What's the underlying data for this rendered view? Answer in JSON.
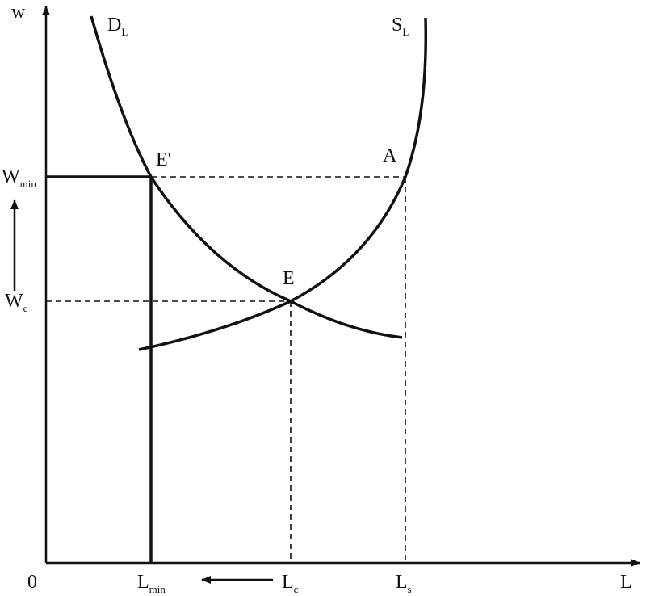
{
  "axes": {
    "y_label": "w",
    "x_label": "L",
    "origin": "0"
  },
  "curves": [
    {
      "label": "D",
      "sub": "L"
    },
    {
      "label": "S",
      "sub": "L"
    }
  ],
  "points": [
    {
      "label": "E'"
    },
    {
      "label": "A"
    },
    {
      "label": "E"
    }
  ],
  "y_labels": [
    {
      "label": "W",
      "sub": "min"
    },
    {
      "label": "W",
      "sub": "c"
    }
  ],
  "x_labels": [
    {
      "label": "L",
      "sub": "min"
    },
    {
      "label": "L",
      "sub": "c"
    },
    {
      "label": "L",
      "sub": "s"
    }
  ]
}
